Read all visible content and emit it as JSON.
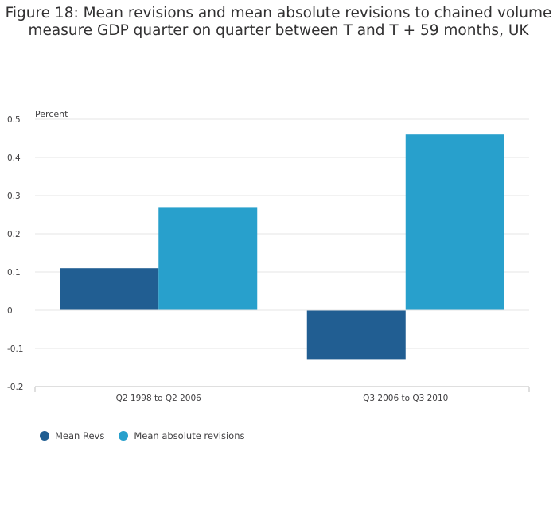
{
  "title": {
    "line1": "Figure 18: Mean revisions and mean absolute revisions to chained volume",
    "line2": "measure GDP quarter on quarter between T and T + 59 months, UK"
  },
  "colors": {
    "mean_revs": "#215e92",
    "mean_abs": "#28a0cc",
    "grid": "#e5e5e5",
    "axis": "#bfbfbf"
  },
  "chart_data": {
    "type": "bar",
    "title": "Figure 18: Mean revisions and mean absolute revisions to chained volume measure GDP quarter on quarter between T and T + 59 months, UK",
    "ylabel": "Percent",
    "xlabel": "",
    "categories": [
      "Q2 1998 to Q2 2006",
      "Q3 2006 to Q3 2010"
    ],
    "series": [
      {
        "name": "Mean Revs",
        "values": [
          0.11,
          -0.13
        ]
      },
      {
        "name": "Mean absolute revisions",
        "values": [
          0.27,
          0.46
        ]
      }
    ],
    "ylim": [
      -0.2,
      0.5
    ],
    "yticks": [
      "0.5",
      "0.4",
      "0.3",
      "0.2",
      "0.1",
      "0",
      "-0.1",
      "-0.2"
    ],
    "ytick_values": [
      0.5,
      0.4,
      0.3,
      0.2,
      0.1,
      0,
      -0.1,
      -0.2
    ],
    "grid": true,
    "legend_position": "bottom-left"
  }
}
